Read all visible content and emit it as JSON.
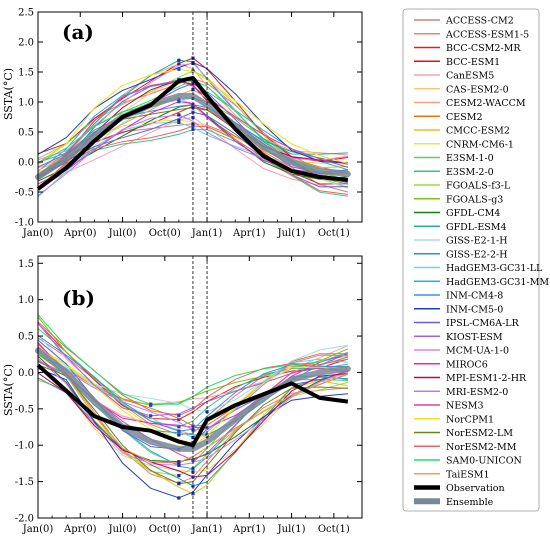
{
  "figure": {
    "legend_entries": [
      "ACCESS-CM2",
      "ACCESS-ESM1-5",
      "BCC-CSM2-MR",
      "BCC-ESM1",
      "CanESM5",
      "CAS-ESM2-0",
      "CESM2-WACCM",
      "CESM2",
      "CMCC-ESM2",
      "CNRM-CM6-1",
      "E3SM-1-0",
      "E3SM-2-0",
      "FGOALS-f3-L",
      "FGOALS-g3",
      "GFDL-CM4",
      "GFDL-ESM4",
      "GISS-E2-1-H",
      "GISS-E2-2-H",
      "HadGEM3-GC31-LL",
      "HadGEM3-GC31-MM",
      "INM-CM4-8",
      "INM-CM5-0",
      "IPSL-CM6A-LR",
      "KIOST-ESM",
      "MCM-UA-1-0",
      "MIROC6",
      "MPI-ESM1-2-HR",
      "MRI-ESM2-0",
      "NESM3",
      "NorCPM1",
      "NorESM2-LM",
      "NorESM2-MM",
      "SAM0-UNICON",
      "TaiESM1",
      "Observation",
      "Ensemble"
    ],
    "model_colors": [
      "#d08080",
      "#f08070",
      "#e02020",
      "#e81010",
      "#f4a0b0",
      "#f8c870",
      "#f4a080",
      "#f07010",
      "#e8c020",
      "#f4e040",
      "#60d060",
      "#40c080",
      "#90e040",
      "#80c020",
      "#108010",
      "#20b0a0",
      "#a0e0e0",
      "#20a0a0",
      "#70d0f0",
      "#20b0f0",
      "#4090e0",
      "#2040c0",
      "#6060e0",
      "#a060e0",
      "#e080f0",
      "#e020e0",
      "#c00060",
      "#b080f0",
      "#e040a0",
      "#f0e020",
      "#708020",
      "#f06060",
      "#20e060",
      "#f0a060"
    ],
    "observation_color": "#000000",
    "ensemble_color": "#778899"
  },
  "chart_data": [
    {
      "type": "line",
      "panel_label": "(a)",
      "ylabel": "SSTA(°C)",
      "x_ticks": [
        "Jan(0)",
        "Apr(0)",
        "Jul(0)",
        "Oct(0)",
        "Jan(1)",
        "Apr(1)",
        "Jul(1)",
        "Oct(1)"
      ],
      "y_ticks": [
        "-1.0",
        "-0.5",
        "0.0",
        "0.5",
        "1.0",
        "1.5",
        "2.0",
        "2.5"
      ],
      "ylim": [
        -1.0,
        2.5
      ],
      "x_months": [
        0,
        2,
        4,
        6,
        8,
        10,
        11,
        12,
        14,
        16,
        18,
        20,
        22
      ],
      "vlines": [
        11,
        12
      ],
      "observation": [
        -0.45,
        -0.1,
        0.35,
        0.75,
        0.95,
        1.35,
        1.4,
        1.1,
        0.55,
        0.1,
        -0.15,
        -0.25,
        -0.3
      ],
      "ensemble": [
        -0.25,
        0.05,
        0.45,
        0.75,
        0.95,
        1.1,
        1.1,
        0.95,
        0.6,
        0.25,
        0.0,
        -0.15,
        -0.2
      ],
      "model_offsets": [
        -0.35,
        0.3,
        -0.2,
        0.5,
        -0.45,
        0.15,
        0.4,
        -0.1,
        0.25,
        -0.3,
        0.05,
        -0.5,
        0.35,
        0.1,
        -0.25,
        0.45,
        -0.15,
        0.2,
        -0.4,
        0.3,
        -0.05,
        0.55,
        -0.3,
        0.1,
        0.4,
        -0.2,
        0.15,
        -0.35,
        0.25,
        0.5,
        -0.1,
        -0.45,
        0.2,
        0.0
      ]
    },
    {
      "type": "line",
      "panel_label": "(b)",
      "ylabel": "SSTA(°C)",
      "x_ticks": [
        "Jan(0)",
        "Apr(0)",
        "Jul(0)",
        "Oct(0)",
        "Jan(1)",
        "Apr(1)",
        "Jul(1)",
        "Oct(1)"
      ],
      "y_ticks": [
        "-2.0",
        "-1.5",
        "-1.0",
        "-0.5",
        "0.0",
        "0.5",
        "1.0",
        "1.5"
      ],
      "ylim": [
        -2.0,
        1.6
      ],
      "x_months": [
        0,
        2,
        4,
        6,
        8,
        10,
        11,
        12,
        14,
        16,
        18,
        20,
        22
      ],
      "vlines": [
        11,
        12
      ],
      "observation": [
        0.1,
        -0.25,
        -0.6,
        -0.75,
        -0.8,
        -0.95,
        -1.0,
        -0.65,
        -0.45,
        -0.3,
        -0.15,
        -0.35,
        -0.4
      ],
      "ensemble": [
        0.3,
        0.0,
        -0.4,
        -0.75,
        -0.95,
        -1.05,
        -1.05,
        -0.95,
        -0.65,
        -0.35,
        -0.1,
        0.0,
        0.05
      ],
      "model_offsets": [
        0.3,
        -0.35,
        0.45,
        -0.2,
        0.55,
        -0.4,
        0.15,
        0.35,
        -0.5,
        0.2,
        -0.1,
        0.4,
        -0.3,
        0.6,
        -0.25,
        0.1,
        0.5,
        -0.45,
        0.25,
        -0.15,
        0.35,
        -0.55,
        0.05,
        0.45,
        -0.3,
        0.2,
        -0.4,
        0.3,
        -0.05,
        0.15,
        -0.35,
        0.55,
        0.65,
        -0.2
      ]
    }
  ]
}
